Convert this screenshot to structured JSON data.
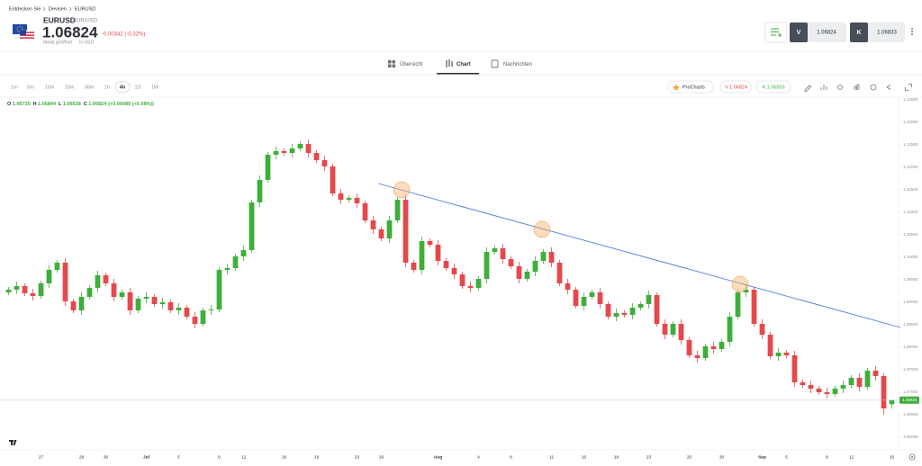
{
  "header": {
    "breadcrumb": [
      "Entdecken Sie",
      "Devisen",
      "EURUSD"
    ],
    "symbol": "EURUSD",
    "pair": "EUR/USD",
    "price": "1.06824",
    "change": "-0.00342 (-0.32%)",
    "status": "Markt geöffnet",
    "currency": "In USD",
    "sell_label": "V",
    "sell_price": "1.06824",
    "buy_label": "K",
    "buy_price": "1.06833"
  },
  "tabs": [
    "Übersicht",
    "Chart",
    "Nachrichten"
  ],
  "toolbar": {
    "intervals": [
      "1m",
      "5m",
      "10m",
      "15m",
      "30m",
      "1h",
      "4h",
      "1D",
      "1W"
    ],
    "selected": "4h",
    "procharts": "ProCharts",
    "sell": "V 1.06824",
    "buy": "K 1.06833"
  },
  "chart_data": {
    "type": "candlestick",
    "ohlc_labels": [
      "O",
      "H",
      "L",
      "C"
    ],
    "ohlc_change": "(+0.00089 (+0.08%))",
    "up_color": "#3fae3a",
    "down_color": "#e5484d",
    "ylim": [
      1.0572,
      1.1356
    ],
    "yticks": [
      {
        "value": 1.135,
        "label": "1.13500"
      },
      {
        "value": 1.13,
        "label": "1.13000"
      },
      {
        "value": 1.125,
        "label": "1.12500"
      },
      {
        "value": 1.12,
        "label": "1.12000"
      },
      {
        "value": 1.115,
        "label": "1.11500"
      },
      {
        "value": 1.11,
        "label": "1.11000"
      },
      {
        "value": 1.105,
        "label": "1.10500"
      },
      {
        "value": 1.1,
        "label": "1.10000"
      },
      {
        "value": 1.095,
        "label": "1.09500"
      },
      {
        "value": 1.09,
        "label": "1.09000"
      },
      {
        "value": 1.085,
        "label": "1.08500"
      },
      {
        "value": 1.08,
        "label": "1.08000"
      },
      {
        "value": 1.075,
        "label": "1.07500"
      },
      {
        "value": 1.07,
        "label": "1.07000"
      },
      {
        "value": 1.065,
        "label": "1.06500"
      },
      {
        "value": 1.06,
        "label": "1.06000"
      }
    ],
    "grid": false,
    "categories": [
      null,
      null,
      null,
      null,
      "27",
      null,
      null,
      null,
      null,
      "28",
      null,
      null,
      "30",
      null,
      null,
      null,
      null,
      "Jul",
      null,
      null,
      null,
      "5",
      null,
      null,
      null,
      null,
      "9",
      null,
      null,
      "12",
      null,
      null,
      null,
      null,
      "16",
      null,
      null,
      null,
      "19",
      null,
      null,
      null,
      null,
      "23",
      null,
      null,
      "26",
      null,
      null,
      null,
      null,
      null,
      null,
      "Aug",
      null,
      null,
      null,
      null,
      "4",
      null,
      null,
      null,
      "8",
      null,
      null,
      null,
      null,
      "11",
      null,
      null,
      null,
      "16",
      null,
      null,
      null,
      "18",
      null,
      null,
      null,
      "23",
      null,
      null,
      null,
      null,
      "25",
      null,
      null,
      null,
      "30",
      null,
      null,
      null,
      null,
      "Sep",
      null,
      null,
      "5",
      null,
      null,
      null,
      null,
      "8",
      null,
      null,
      "12",
      null,
      null,
      null,
      null,
      "15"
    ],
    "open": [
      1.0922,
      1.0928,
      1.0936,
      1.092,
      1.0914,
      1.0942,
      1.0972,
      1.0988,
      1.0902,
      1.0882,
      1.0912,
      1.0932,
      1.096,
      1.0942,
      1.0912,
      1.0922,
      1.0882,
      1.0908,
      1.0912,
      1.0896,
      1.09,
      1.0882,
      1.0888,
      1.0868,
      1.0852,
      1.0882,
      1.0884,
      1.0972,
      1.0976,
      1.1002,
      1.1016,
      1.1122,
      1.1172,
      1.1228,
      1.1236,
      1.1232,
      1.1242,
      1.1252,
      1.1232,
      1.1216,
      1.1202,
      1.1142,
      1.1128,
      1.1132,
      1.112,
      1.1082,
      1.1062,
      1.1042,
      1.1082,
      1.1128,
      1.0988,
      1.0972,
      1.1036,
      1.1028,
      1.0992,
      1.0976,
      1.0962,
      1.0936,
      1.0932,
      1.0952,
      1.1012,
      1.102,
      1.0996,
      1.098,
      1.0952,
      1.0968,
      1.0992,
      1.1012,
      1.0988,
      1.0942,
      1.0928,
      1.0892,
      1.0912,
      1.0922,
      1.0896,
      1.0868,
      1.0876,
      1.0872,
      1.0888,
      1.0896,
      1.0916,
      1.0852,
      1.0828,
      1.0852,
      1.0816,
      1.0782,
      1.0776,
      1.0802,
      1.0796,
      1.0812,
      1.0868,
      1.0922,
      1.0928,
      1.0852,
      1.0828,
      1.078,
      1.0788,
      1.0782,
      1.0722,
      1.0716,
      1.0708,
      1.07,
      1.0696,
      1.0708,
      1.0716,
      1.0732,
      1.0712,
      1.0748,
      1.0736,
      1.06735
    ],
    "high": [
      1.0934,
      1.0946,
      1.0942,
      1.093,
      1.0948,
      1.0982,
      1.0994,
      1.0998,
      1.0908,
      1.0922,
      1.0938,
      1.097,
      1.0966,
      1.0952,
      1.0928,
      1.0932,
      1.0914,
      1.0922,
      1.0918,
      1.091,
      1.0906,
      1.0898,
      1.0894,
      1.0878,
      1.0888,
      1.0894,
      1.0978,
      1.0986,
      1.1008,
      1.1026,
      1.1128,
      1.1182,
      1.1234,
      1.1246,
      1.1242,
      1.1252,
      1.1258,
      1.1262,
      1.1238,
      1.1226,
      1.1208,
      1.1152,
      1.1138,
      1.1142,
      1.1126,
      1.1092,
      1.1068,
      1.1092,
      1.1134,
      1.1138,
      1.0994,
      1.1046,
      1.1042,
      1.1038,
      1.0998,
      1.0986,
      1.0968,
      1.0946,
      1.0958,
      1.1022,
      1.1026,
      1.103,
      1.1002,
      1.099,
      1.0974,
      1.1002,
      1.1018,
      1.1022,
      1.0994,
      1.0952,
      1.0934,
      1.0922,
      1.0928,
      1.0932,
      1.0902,
      1.0886,
      1.0882,
      1.0898,
      1.0902,
      1.0926,
      1.0922,
      1.0862,
      1.0858,
      1.0862,
      1.0822,
      1.0792,
      1.0808,
      1.0812,
      1.0818,
      1.0878,
      1.0928,
      1.0938,
      1.0934,
      1.0862,
      1.0834,
      1.0798,
      1.0794,
      1.0792,
      1.0728,
      1.0726,
      1.0714,
      1.071,
      1.0714,
      1.0726,
      1.0738,
      1.0742,
      1.0754,
      1.0758,
      1.0742,
      1.06844
    ],
    "low": [
      1.0916,
      1.0918,
      1.0914,
      1.0904,
      1.0908,
      1.0932,
      1.0966,
      1.0892,
      1.0876,
      1.0872,
      1.0906,
      1.0922,
      1.0936,
      1.0902,
      1.0906,
      1.0872,
      1.0876,
      1.0898,
      1.089,
      1.0886,
      1.0876,
      1.0872,
      1.0862,
      1.0842,
      1.0846,
      1.0872,
      1.0878,
      1.0962,
      1.097,
      1.0992,
      1.101,
      1.1112,
      1.1166,
      1.1218,
      1.1226,
      1.1222,
      1.1236,
      1.1222,
      1.121,
      1.1192,
      1.1136,
      1.1118,
      1.1122,
      1.111,
      1.1076,
      1.1052,
      1.1036,
      1.1032,
      1.1076,
      1.0978,
      1.0966,
      1.0962,
      1.1022,
      1.0982,
      1.097,
      1.0952,
      1.093,
      1.0922,
      1.0926,
      1.0942,
      1.1006,
      1.0986,
      1.0974,
      1.0942,
      1.0946,
      1.0958,
      1.0986,
      1.0978,
      1.0936,
      1.0918,
      1.0886,
      1.0882,
      1.0906,
      1.0886,
      1.0862,
      1.0858,
      1.0866,
      1.0862,
      1.0882,
      1.0886,
      1.0846,
      1.0818,
      1.0822,
      1.0806,
      1.0776,
      1.0766,
      1.077,
      1.0786,
      1.079,
      1.0802,
      1.0862,
      1.0912,
      1.0846,
      1.0818,
      1.0774,
      1.077,
      1.0776,
      1.0712,
      1.071,
      1.0698,
      1.0694,
      1.0686,
      1.069,
      1.0698,
      1.071,
      1.0702,
      1.0706,
      1.0726,
      1.065,
      1.06638
    ],
    "close": [
      1.0928,
      1.0936,
      1.092,
      1.0914,
      1.0942,
      1.0972,
      1.0988,
      1.0902,
      1.0882,
      1.0912,
      1.0932,
      1.096,
      1.0942,
      1.0912,
      1.0922,
      1.0882,
      1.0908,
      1.0912,
      1.0896,
      1.09,
      1.0882,
      1.0888,
      1.0868,
      1.0852,
      1.0882,
      1.0884,
      1.0972,
      1.0976,
      1.1002,
      1.1016,
      1.1122,
      1.1172,
      1.1228,
      1.1236,
      1.1232,
      1.1242,
      1.1252,
      1.1232,
      1.1216,
      1.1202,
      1.1142,
      1.1128,
      1.1132,
      1.112,
      1.1082,
      1.1062,
      1.1042,
      1.1082,
      1.1128,
      1.0988,
      1.0972,
      1.1036,
      1.1028,
      1.0992,
      1.0976,
      1.0962,
      1.0936,
      1.0932,
      1.0952,
      1.1012,
      1.102,
      1.0996,
      1.098,
      1.0952,
      1.0968,
      1.0992,
      1.1012,
      1.0988,
      1.0942,
      1.0928,
      1.0892,
      1.0912,
      1.0922,
      1.0896,
      1.0868,
      1.0876,
      1.0872,
      1.0888,
      1.0896,
      1.0916,
      1.0852,
      1.0828,
      1.0852,
      1.0816,
      1.0782,
      1.0776,
      1.0802,
      1.0796,
      1.0812,
      1.0868,
      1.0922,
      1.0928,
      1.0852,
      1.0828,
      1.078,
      1.0788,
      1.0782,
      1.0722,
      1.0716,
      1.0708,
      1.07,
      1.0696,
      1.0708,
      1.0716,
      1.0732,
      1.0712,
      1.0748,
      1.0736,
      1.0664,
      1.06824
    ]
  }
}
